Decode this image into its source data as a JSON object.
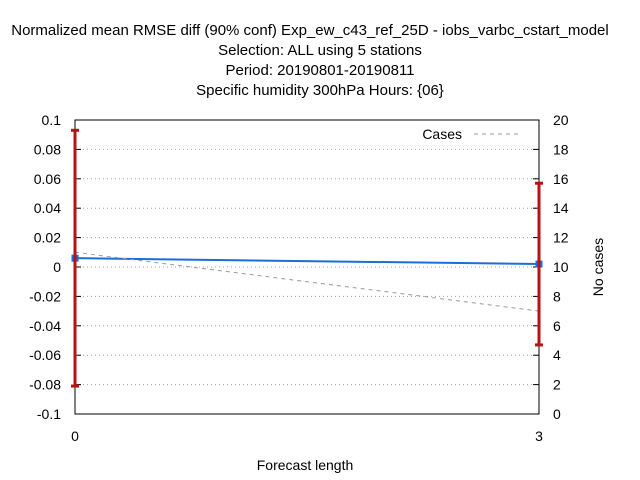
{
  "chart_data": {
    "type": "line",
    "title_lines": [
      "Normalized mean RMSE diff (90% conf) Exp_ew_c43_ref_25D - iobs_varbc_cstart_model",
      "Selection: ALL using      5 stations",
      "Period: 20190801-20190811",
      "Specific humidity 300hPa   Hours: {06}"
    ],
    "xlabel": "Forecast length",
    "ylabel": "",
    "y2label": "No cases",
    "xlim": [
      0,
      3
    ],
    "ylim": [
      -0.1,
      0.1
    ],
    "y2lim": [
      0,
      20
    ],
    "x_ticks": [
      "0",
      "3"
    ],
    "y_ticks": [
      "0.1",
      "0.08",
      "0.06",
      "0.04",
      "0.02",
      "0",
      "-0.02",
      "-0.04",
      "-0.06",
      "-0.08",
      "-0.1"
    ],
    "y2_ticks": [
      "20",
      "18",
      "16",
      "14",
      "12",
      "10",
      "8",
      "6",
      "4",
      "2",
      "0"
    ],
    "grid": true,
    "legend": {
      "position": "top-right",
      "entries": [
        "Cases"
      ]
    },
    "series": [
      {
        "x": [
          0,
          3
        ],
        "y": [
          0.006,
          0.002
        ],
        "color": "#1a6fd6",
        "axis": "left",
        "style": "solid"
      },
      {
        "name": "Cases",
        "x": [
          0,
          3
        ],
        "y": [
          11,
          7
        ],
        "color": "#999999",
        "axis": "right",
        "style": "dashed"
      }
    ],
    "error_bars": [
      {
        "x": 0,
        "low": -0.081,
        "high": 0.093,
        "color": "#bb1111"
      },
      {
        "x": 3,
        "low": -0.053,
        "high": 0.057,
        "color": "#bb1111"
      }
    ]
  }
}
